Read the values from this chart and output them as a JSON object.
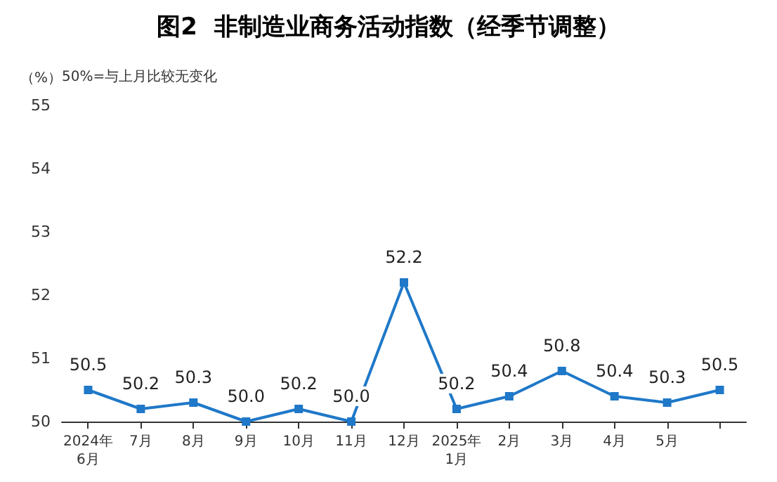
{
  "chart_data": {
    "type": "line",
    "title": "图2  非制造业商务活动指数（经季节调整）",
    "ylabel": "（%）",
    "annotations": [
      "50%=与上月比较无变化"
    ],
    "categories": [
      "2024年\n6月",
      "7月",
      "8月",
      "9月",
      "10月",
      "11月",
      "12月",
      "2025年\n1月",
      "2月",
      "3月",
      "4月",
      "5月",
      null
    ],
    "series": [
      {
        "color": "#1f78c8",
        "values": [
          50.5,
          50.2,
          50.3,
          50.0,
          50.2,
          50.0,
          52.2,
          50.2,
          50.4,
          50.8,
          50.4,
          50.3,
          50.5
        ],
        "value_labels": [
          "50.5",
          "50.2",
          "50.3",
          "50.0",
          "50.2",
          "50.0",
          "52.2",
          "50.2",
          "50.4",
          "50.8",
          "50.4",
          "50.3",
          "50.5"
        ]
      }
    ],
    "ylim": [
      50,
      55
    ],
    "yticks": [
      50,
      51,
      52,
      53,
      54,
      55
    ],
    "grid": false,
    "marker": "square",
    "line_style": "solid"
  }
}
